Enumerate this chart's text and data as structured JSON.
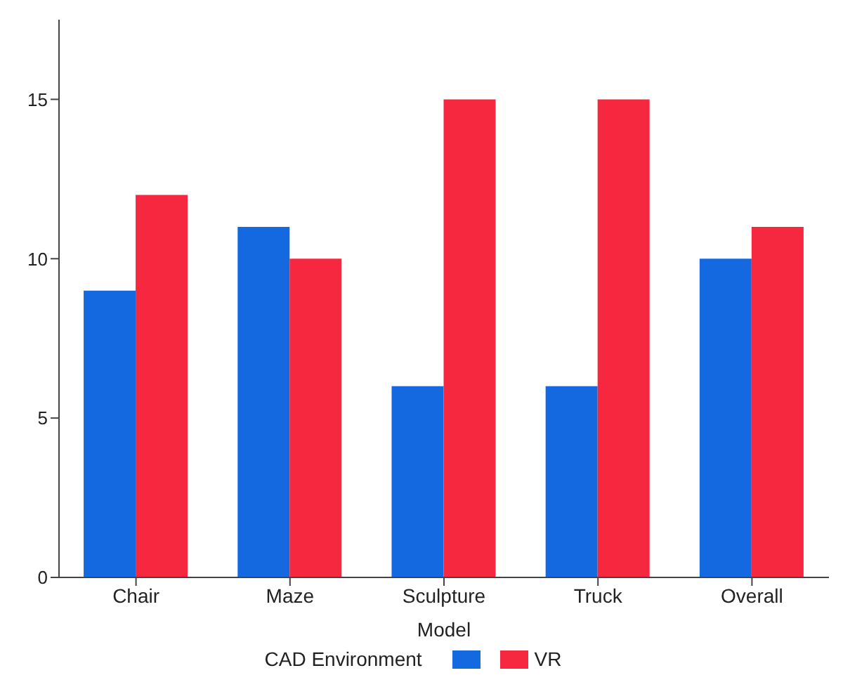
{
  "chart_data": {
    "type": "bar",
    "xlabel": "Model",
    "legend_title": "CAD Environment",
    "categories": [
      "Chair",
      "Maze",
      "Sculpture",
      "Truck",
      "Overall"
    ],
    "series": [
      {
        "color": "#1569e0",
        "values": [
          9,
          11,
          6,
          6,
          10
        ]
      },
      {
        "name": "VR",
        "color": "#f5283f",
        "values": [
          12,
          10,
          15,
          15,
          11
        ]
      }
    ],
    "ylim": [
      0,
      17.5
    ],
    "yticks": [
      0,
      5,
      10,
      15
    ],
    "grid": false,
    "legend": "bottom"
  }
}
